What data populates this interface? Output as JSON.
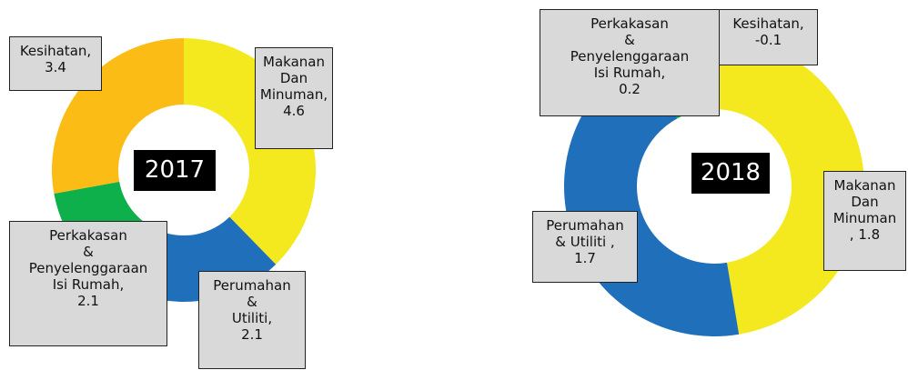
{
  "chart_data": [
    {
      "type": "pie",
      "donut": true,
      "title": "2017",
      "categories": [
        "Makanan Dan\nMinuman,",
        "Perumahan\n&\nUtiliti,",
        "Perkakasan\n&\nPenyelenggaraan\nIsi Rumah,",
        "Kesihatan,"
      ],
      "values": [
        4.6,
        2.1,
        2.1,
        3.4
      ],
      "colors": [
        "#f4e81e",
        "#1f6fba",
        "#0db04b",
        "#fbbc15"
      ]
    },
    {
      "type": "pie",
      "donut": true,
      "title": "2018",
      "categories": [
        "Makanan\nDan\nMinuman",
        "Perumahan\n& Utiliti ,",
        "Perkakasan\n&\nPenyelenggaraan\nIsi Rumah,",
        "Kesihatan,"
      ],
      "values": [
        1.8,
        1.7,
        0.2,
        -0.1
      ],
      "value_labels": [
        ", 1.8",
        "1.7",
        "0.2",
        "-0.1"
      ],
      "colors": [
        "#f4e81e",
        "#1f6fba",
        "#0db04b",
        "#fbbc15"
      ]
    }
  ]
}
